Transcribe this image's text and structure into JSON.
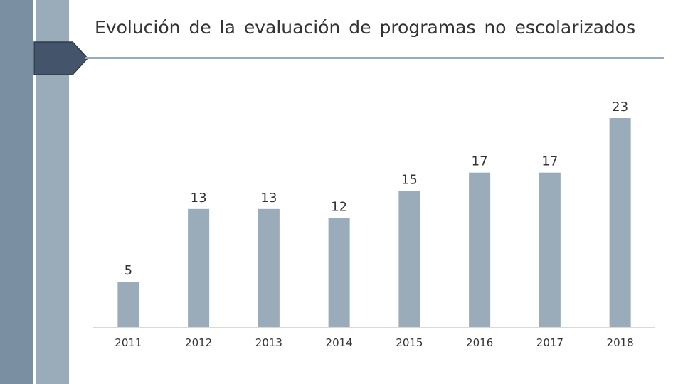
{
  "slide": {
    "title": "Evolución de la evaluación de programas no escolarizados"
  },
  "colors": {
    "band_dark": "#7b8fa2",
    "band_light": "#9aabb9",
    "tab_fill": "#44546a",
    "bar": "#9aabb9",
    "text": "#333333"
  },
  "chart_data": {
    "type": "bar",
    "title": "",
    "xlabel": "",
    "ylabel": "",
    "categories": [
      "2011",
      "2012",
      "2013",
      "2014",
      "2015",
      "2016",
      "2017",
      "2018"
    ],
    "values": [
      5,
      13,
      13,
      12,
      15,
      17,
      17,
      23
    ],
    "data_labels": true,
    "grid": false,
    "legend": "none",
    "ylim": [
      0,
      23
    ]
  }
}
